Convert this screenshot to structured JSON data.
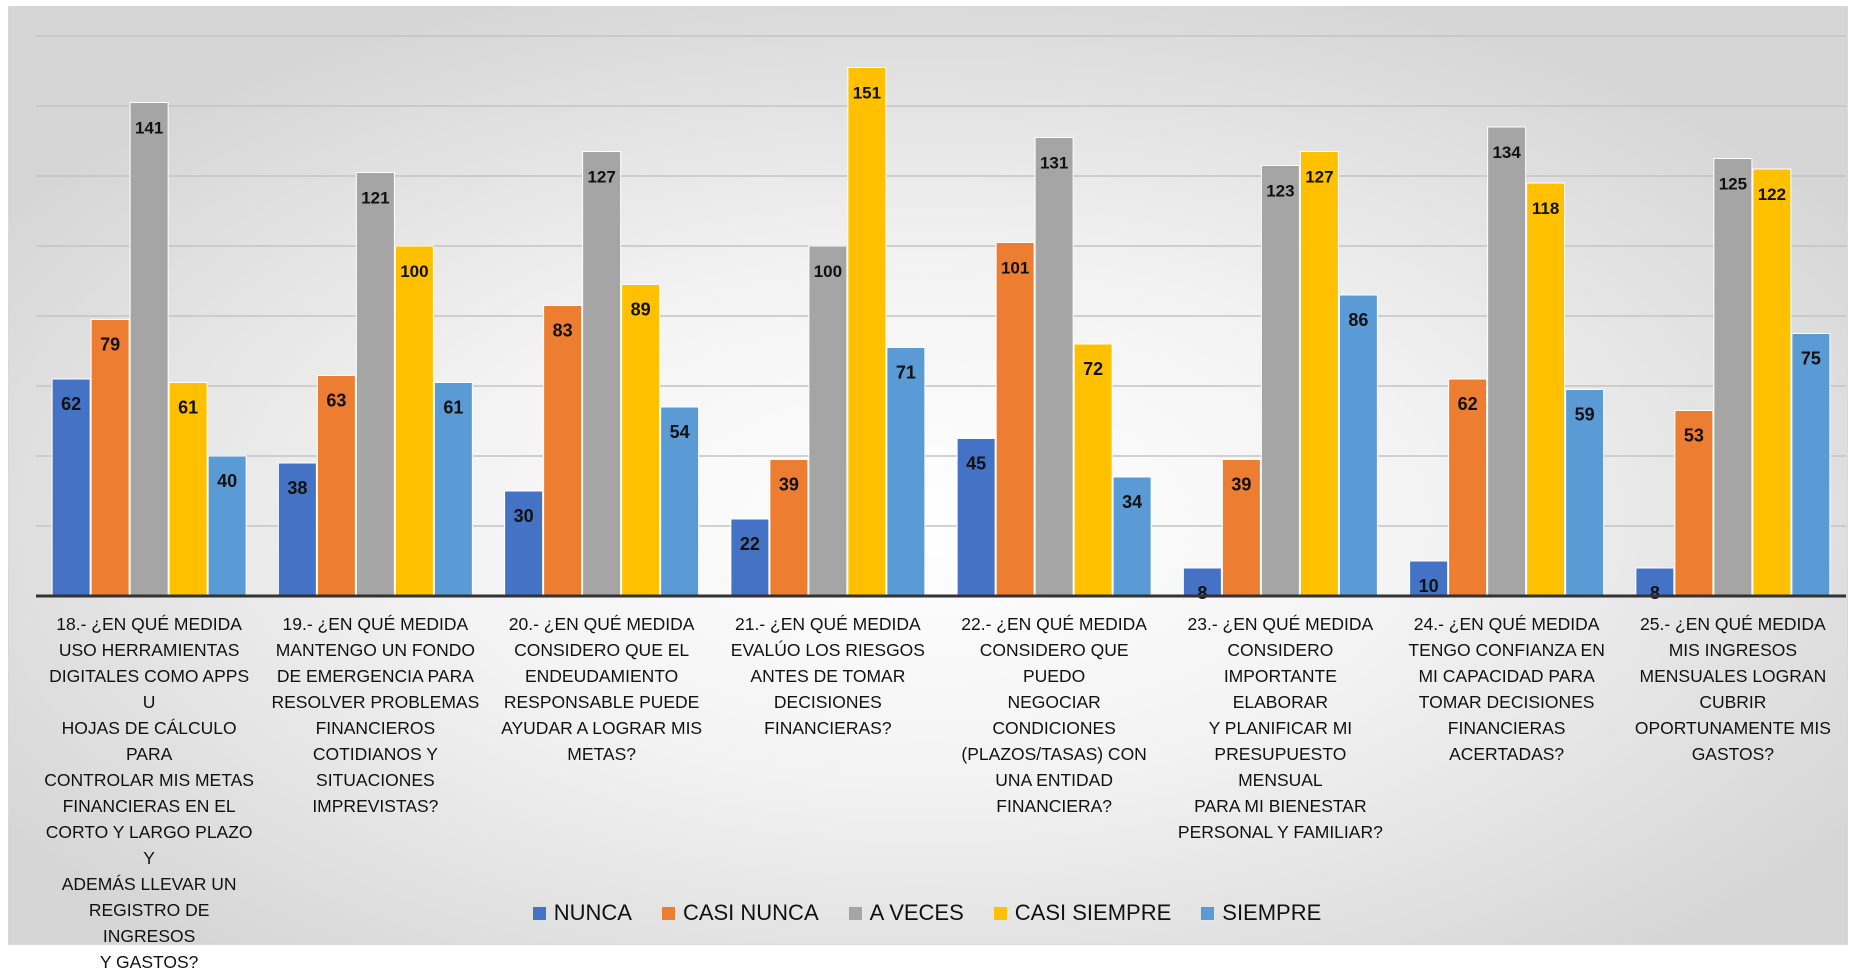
{
  "chart_data": {
    "type": "bar",
    "title": "",
    "xlabel": "",
    "ylabel": "",
    "ylim": [
      0,
      160
    ],
    "grid": true,
    "legend_position": "bottom",
    "categories": [
      "18.- ¿EN QUÉ MEDIDA USO HERRAMIENTAS DIGITALES COMO APPS U HOJAS DE CÁLCULO PARA CONTROLAR MIS METAS FINANCIERAS EN EL CORTO Y LARGO PLAZO Y ADEMÁS LLEVAR UN REGISTRO DE INGRESOS Y GASTOS?",
      "19.- ¿EN QUÉ MEDIDA MANTENGO UN FONDO DE EMERGENCIA PARA RESOLVER PROBLEMAS FINANCIEROS COTIDIANOS Y SITUACIONES IMPREVISTAS?",
      "20.- ¿EN QUÉ MEDIDA CONSIDERO QUE EL ENDEUDAMIENTO RESPONSABLE PUEDE AYUDAR A LOGRAR MIS METAS?",
      "21.- ¿EN QUÉ MEDIDA EVALÚO LOS RIESGOS ANTES DE TOMAR DECISIONES FINANCIERAS?",
      "22.- ¿EN QUÉ MEDIDA CONSIDERO QUE PUEDO NEGOCIAR CONDICIONES (PLAZOS/TASAS) CON UNA ENTIDAD FINANCIERA?",
      "23.- ¿EN QUÉ MEDIDA CONSIDERO IMPORTANTE ELABORAR Y PLANIFICAR MI PRESUPUESTO MENSUAL PARA MI BIENESTAR PERSONAL Y FAMILIAR?",
      "24.- ¿EN QUÉ MEDIDA TENGO CONFIANZA EN MI CAPACIDAD PARA TOMAR DECISIONES FINANCIERAS ACERTADAS?",
      "25.- ¿EN QUÉ MEDIDA MIS INGRESOS MENSUALES LOGRAN CUBRIR OPORTUNAMENTE MIS GASTOS?"
    ],
    "category_lines": [
      [
        "18.- ¿EN QUÉ MEDIDA",
        "USO HERRAMIENTAS",
        "DIGITALES COMO APPS U",
        "HOJAS DE CÁLCULO PARA",
        "CONTROLAR MIS METAS",
        "FINANCIERAS EN EL",
        "CORTO Y LARGO PLAZO Y",
        "ADEMÁS LLEVAR UN",
        "REGISTRO DE INGRESOS",
        "Y GASTOS?"
      ],
      [
        "19.- ¿EN QUÉ MEDIDA",
        "MANTENGO UN FONDO",
        "DE EMERGENCIA PARA",
        "RESOLVER PROBLEMAS",
        "FINANCIEROS",
        "COTIDIANOS Y",
        "SITUACIONES",
        "IMPREVISTAS?"
      ],
      [
        "20.- ¿EN QUÉ MEDIDA",
        "CONSIDERO QUE EL",
        "ENDEUDAMIENTO",
        "RESPONSABLE PUEDE",
        "AYUDAR A LOGRAR MIS",
        "METAS?"
      ],
      [
        "21.- ¿EN QUÉ MEDIDA",
        "EVALÚO LOS RIESGOS",
        "ANTES DE TOMAR",
        "DECISIONES",
        "FINANCIERAS?"
      ],
      [
        "22.- ¿EN QUÉ MEDIDA",
        "CONSIDERO QUE PUEDO",
        "NEGOCIAR CONDICIONES",
        "(PLAZOS/TASAS) CON",
        "UNA ENTIDAD",
        "FINANCIERA?"
      ],
      [
        "23.- ¿EN QUÉ MEDIDA",
        "CONSIDERO",
        "IMPORTANTE ELABORAR",
        "Y PLANIFICAR MI",
        "PRESUPUESTO MENSUAL",
        "PARA MI BIENESTAR",
        "PERSONAL Y FAMILIAR?"
      ],
      [
        "24.- ¿EN QUÉ MEDIDA",
        "TENGO CONFIANZA EN",
        "MI CAPACIDAD PARA",
        "TOMAR DECISIONES",
        "FINANCIERAS",
        "ACERTADAS?"
      ],
      [
        "25.- ¿EN QUÉ MEDIDA",
        "MIS INGRESOS",
        "MENSUALES LOGRAN",
        "CUBRIR",
        "OPORTUNAMENTE MIS",
        "GASTOS?"
      ]
    ],
    "series": [
      {
        "name": "NUNCA",
        "color": "#4472c4",
        "values": [
          62,
          38,
          30,
          22,
          45,
          8,
          10,
          8
        ]
      },
      {
        "name": "CASI NUNCA",
        "color": "#ed7d31",
        "values": [
          79,
          63,
          83,
          39,
          101,
          39,
          62,
          53
        ]
      },
      {
        "name": "A VECES",
        "color": "#a5a5a5",
        "values": [
          141,
          121,
          127,
          100,
          131,
          123,
          134,
          125
        ]
      },
      {
        "name": "CASI SIEMPRE",
        "color": "#ffc000",
        "values": [
          61,
          100,
          89,
          151,
          72,
          127,
          118,
          122
        ]
      },
      {
        "name": "SIEMPRE",
        "color": "#5b9bd5",
        "values": [
          40,
          61,
          54,
          71,
          34,
          86,
          59,
          75
        ]
      }
    ]
  }
}
